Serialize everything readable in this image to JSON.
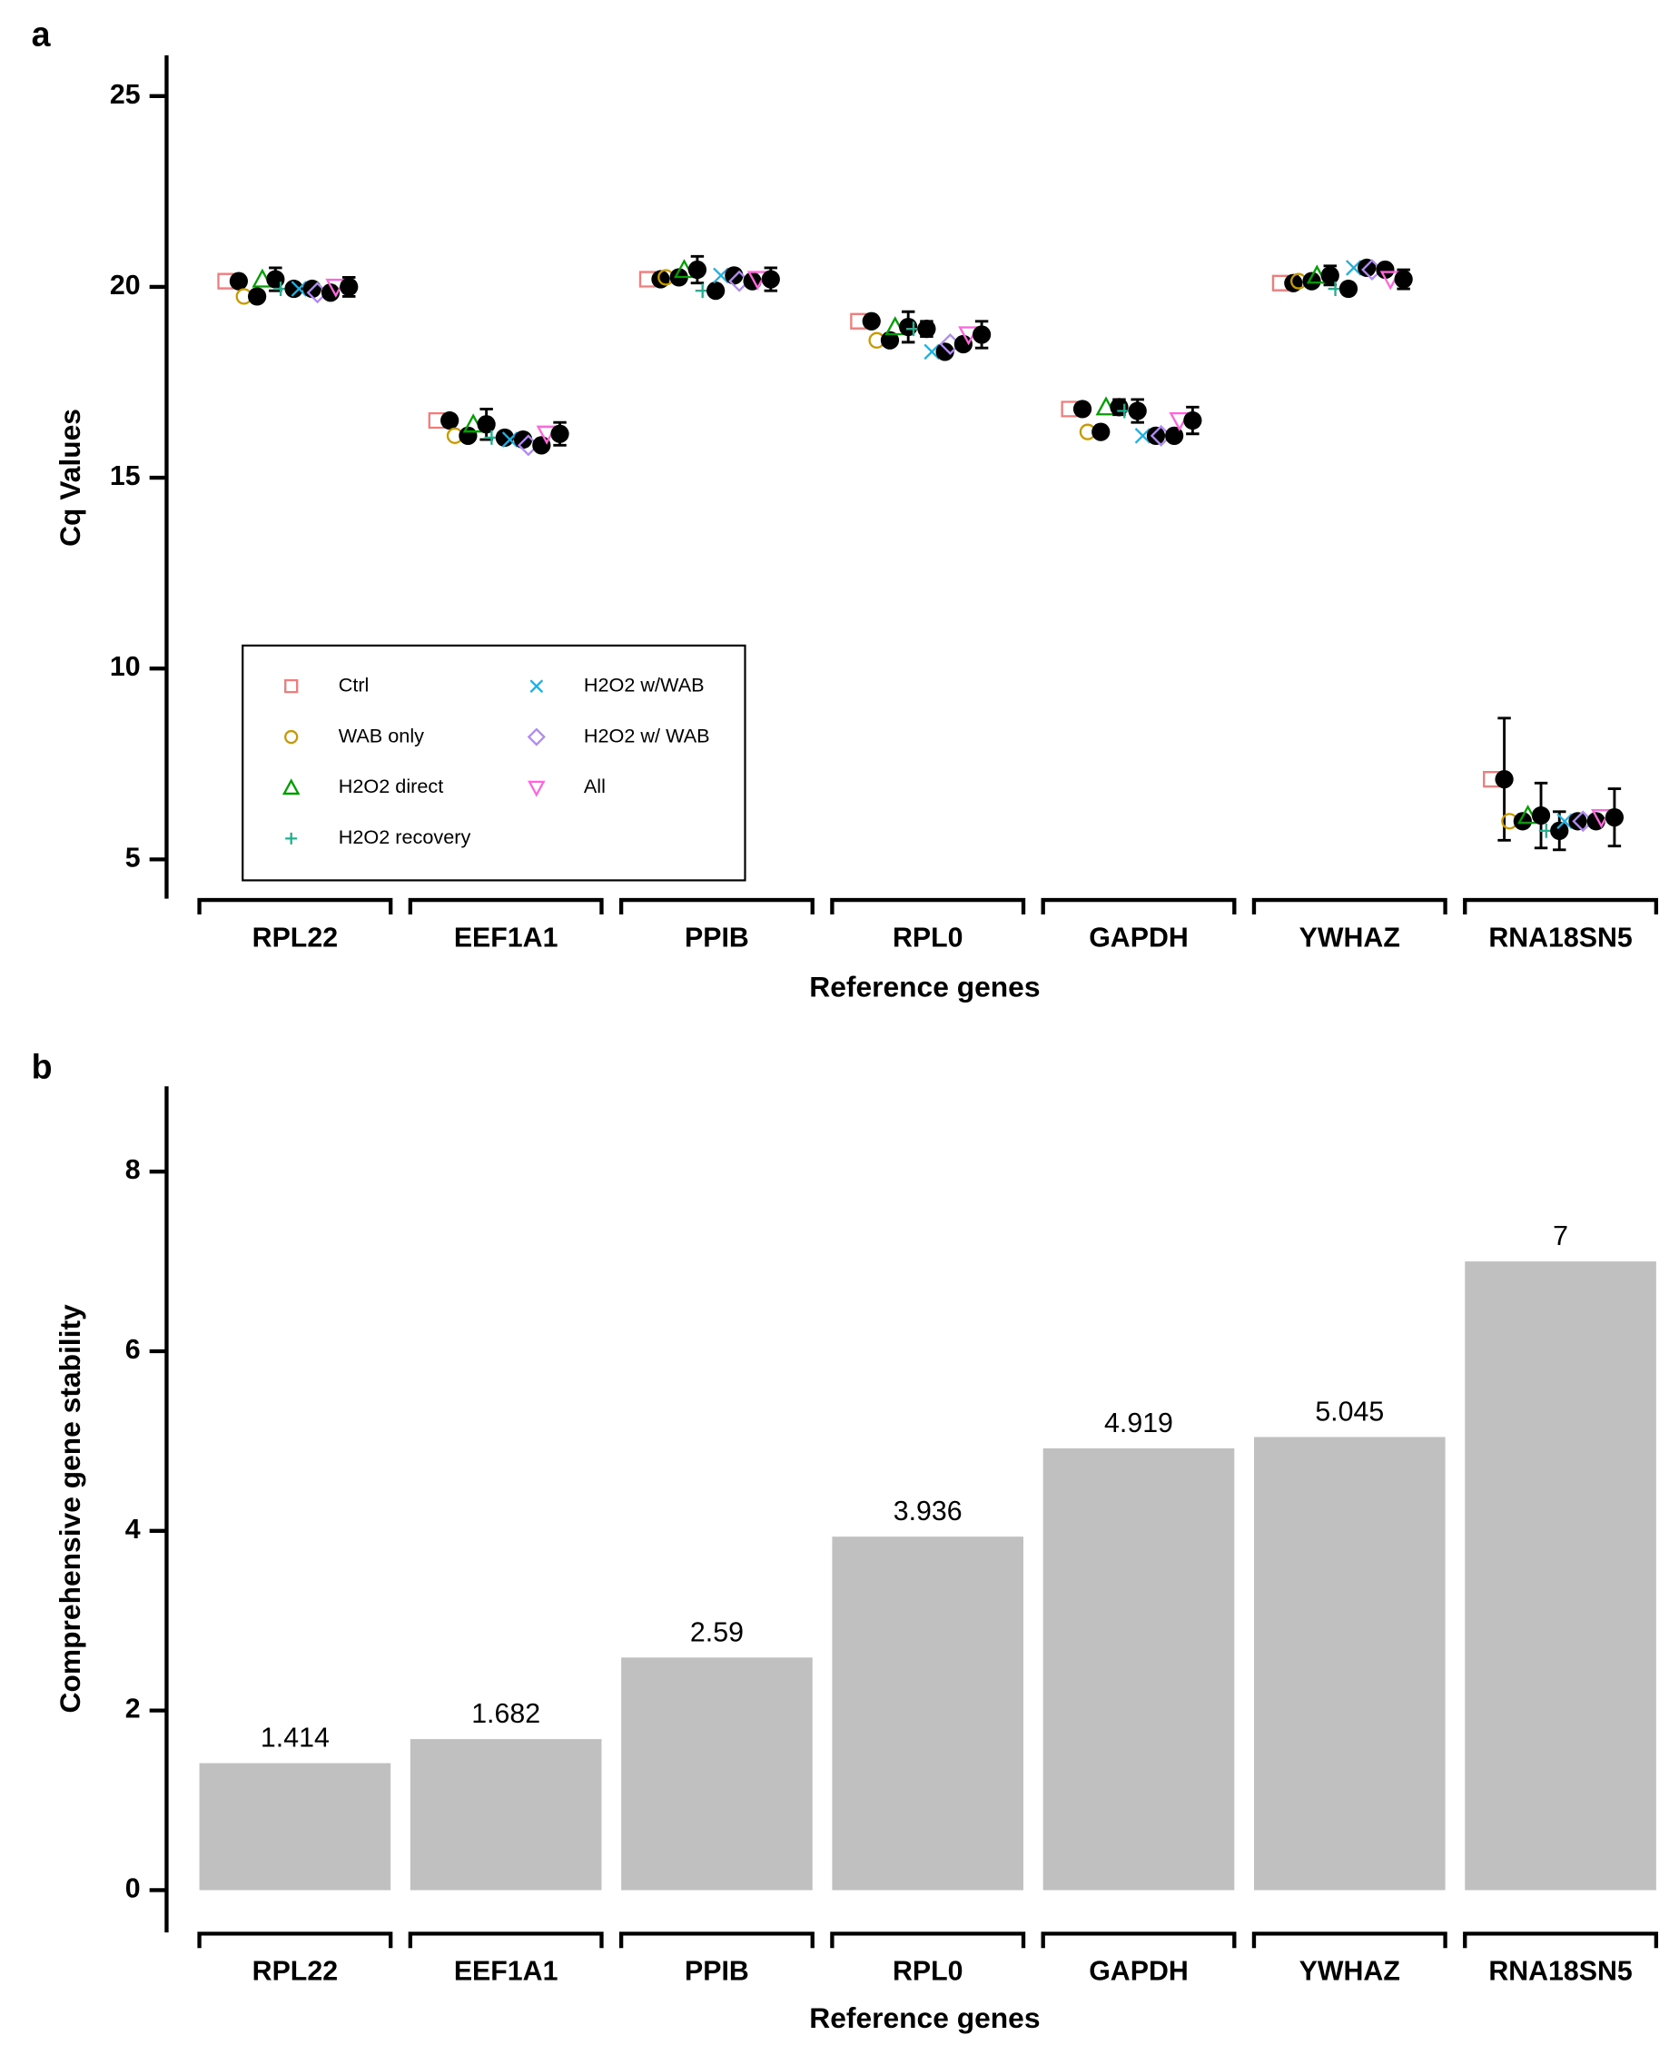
{
  "chart_data": [
    {
      "type": "dot",
      "panel_label": "a",
      "y_label": "Cq Values",
      "x_label": "Reference genes",
      "categories": [
        "RPL22",
        "EEF1A1",
        "PPIB",
        "RPL0",
        "GAPDH",
        "YWHAZ",
        "RNA18SN5"
      ],
      "ylim": [
        3.97,
        26.07
      ],
      "yticks": [
        5,
        10,
        15,
        20,
        25
      ],
      "series": [
        {
          "name": "Ctrl",
          "color": "#f07c7c",
          "marker": "square",
          "values": [
            20.15,
            16.5,
            20.2,
            19.1,
            16.8,
            20.1,
            7.1
          ],
          "errors": [
            0.05,
            0.05,
            0.05,
            0.05,
            0.05,
            0.05,
            1.6
          ]
        },
        {
          "name": "WAB only",
          "color": "#c99a00",
          "marker": "circle",
          "values": [
            19.75,
            16.1,
            20.25,
            18.6,
            16.2,
            20.15,
            6.0
          ],
          "errors": [
            0.05,
            0.05,
            0.05,
            0.05,
            0.05,
            0.05,
            0.05
          ]
        },
        {
          "name": "H2O2 direct",
          "color": "#00a000",
          "marker": "triangle",
          "values": [
            20.2,
            16.4,
            20.45,
            18.95,
            16.85,
            20.3,
            6.15
          ],
          "errors": [
            0.3,
            0.4,
            0.35,
            0.4,
            0.2,
            0.25,
            0.85
          ]
        },
        {
          "name": "H2O2 recovery",
          "color": "#20b090",
          "marker": "plus",
          "values": [
            19.95,
            16.05,
            19.9,
            18.9,
            16.75,
            19.95,
            5.75
          ],
          "errors": [
            0.1,
            0.1,
            0.1,
            0.2,
            0.3,
            0.1,
            0.5
          ]
        },
        {
          "name": "H2O2 w/WAB",
          "color": "#20b0e0",
          "marker": "x",
          "values": [
            19.95,
            16.0,
            20.3,
            18.3,
            16.1,
            20.5,
            6.0
          ],
          "errors": [
            0.05,
            0.05,
            0.05,
            0.05,
            0.05,
            0.05,
            0.05
          ]
        },
        {
          "name": "H2O2 w/ WAB",
          "color": "#b08cf0",
          "marker": "diamond",
          "values": [
            19.85,
            15.85,
            20.15,
            18.5,
            16.1,
            20.45,
            6.0
          ],
          "errors": [
            0.05,
            0.05,
            0.05,
            0.05,
            0.05,
            0.05,
            0.05
          ]
        },
        {
          "name": "All",
          "color": "#ff66dd",
          "marker": "triangle-down",
          "values": [
            20.0,
            16.15,
            20.2,
            18.75,
            16.5,
            20.2,
            6.1
          ],
          "errors": [
            0.25,
            0.3,
            0.3,
            0.35,
            0.35,
            0.25,
            0.75
          ]
        }
      ]
    },
    {
      "type": "bar",
      "panel_label": "b",
      "y_label": "Comprehensive gene stability",
      "x_label": "Reference genes",
      "categories": [
        "RPL22",
        "EEF1A1",
        "PPIB",
        "RPL0",
        "GAPDH",
        "YWHAZ",
        "RNA18SN5"
      ],
      "values": [
        1.414,
        1.682,
        2.59,
        3.936,
        4.919,
        5.045,
        7
      ],
      "color": "#c0c0c0",
      "ylim": [
        -0.47,
        8.95
      ],
      "yticks": [
        0,
        2,
        4,
        6,
        8
      ]
    }
  ]
}
